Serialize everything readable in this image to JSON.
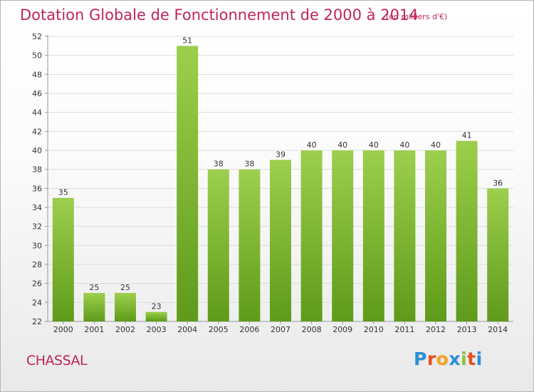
{
  "header": {
    "title": "Dotation Globale de Fonctionnement de 2000 à 2014",
    "unit": "(en milliers d'€)"
  },
  "footer": {
    "commune": "CHASSAL",
    "logo": {
      "letters": [
        "P",
        "r",
        "o",
        "x",
        "i",
        "t",
        "i"
      ],
      "colors": [
        "#2b8fd6",
        "#e8501c",
        "#f4a41f",
        "#2b8fd6",
        "#8fc13d",
        "#e8501c",
        "#2b8fd6"
      ]
    }
  },
  "colors": {
    "bar_light": "#9ccf4d",
    "bar_dark": "#5f9a1a",
    "axis": "#9a9a9a",
    "grid": "#dcdcdc",
    "text": "#333333",
    "accent": "#c0245a"
  },
  "chart_data": {
    "type": "bar",
    "categories": [
      "2000",
      "2001",
      "2002",
      "2003",
      "2004",
      "2005",
      "2006",
      "2007",
      "2008",
      "2009",
      "2010",
      "2011",
      "2012",
      "2013",
      "2014"
    ],
    "values": [
      35,
      25,
      25,
      23,
      51,
      38,
      38,
      39,
      40,
      40,
      40,
      40,
      40,
      41,
      36
    ],
    "yticks": [
      22,
      24,
      26,
      28,
      30,
      32,
      34,
      36,
      38,
      40,
      42,
      44,
      46,
      48,
      50,
      52
    ],
    "ylim": [
      22,
      52
    ],
    "grid": true,
    "data_labels": true
  }
}
